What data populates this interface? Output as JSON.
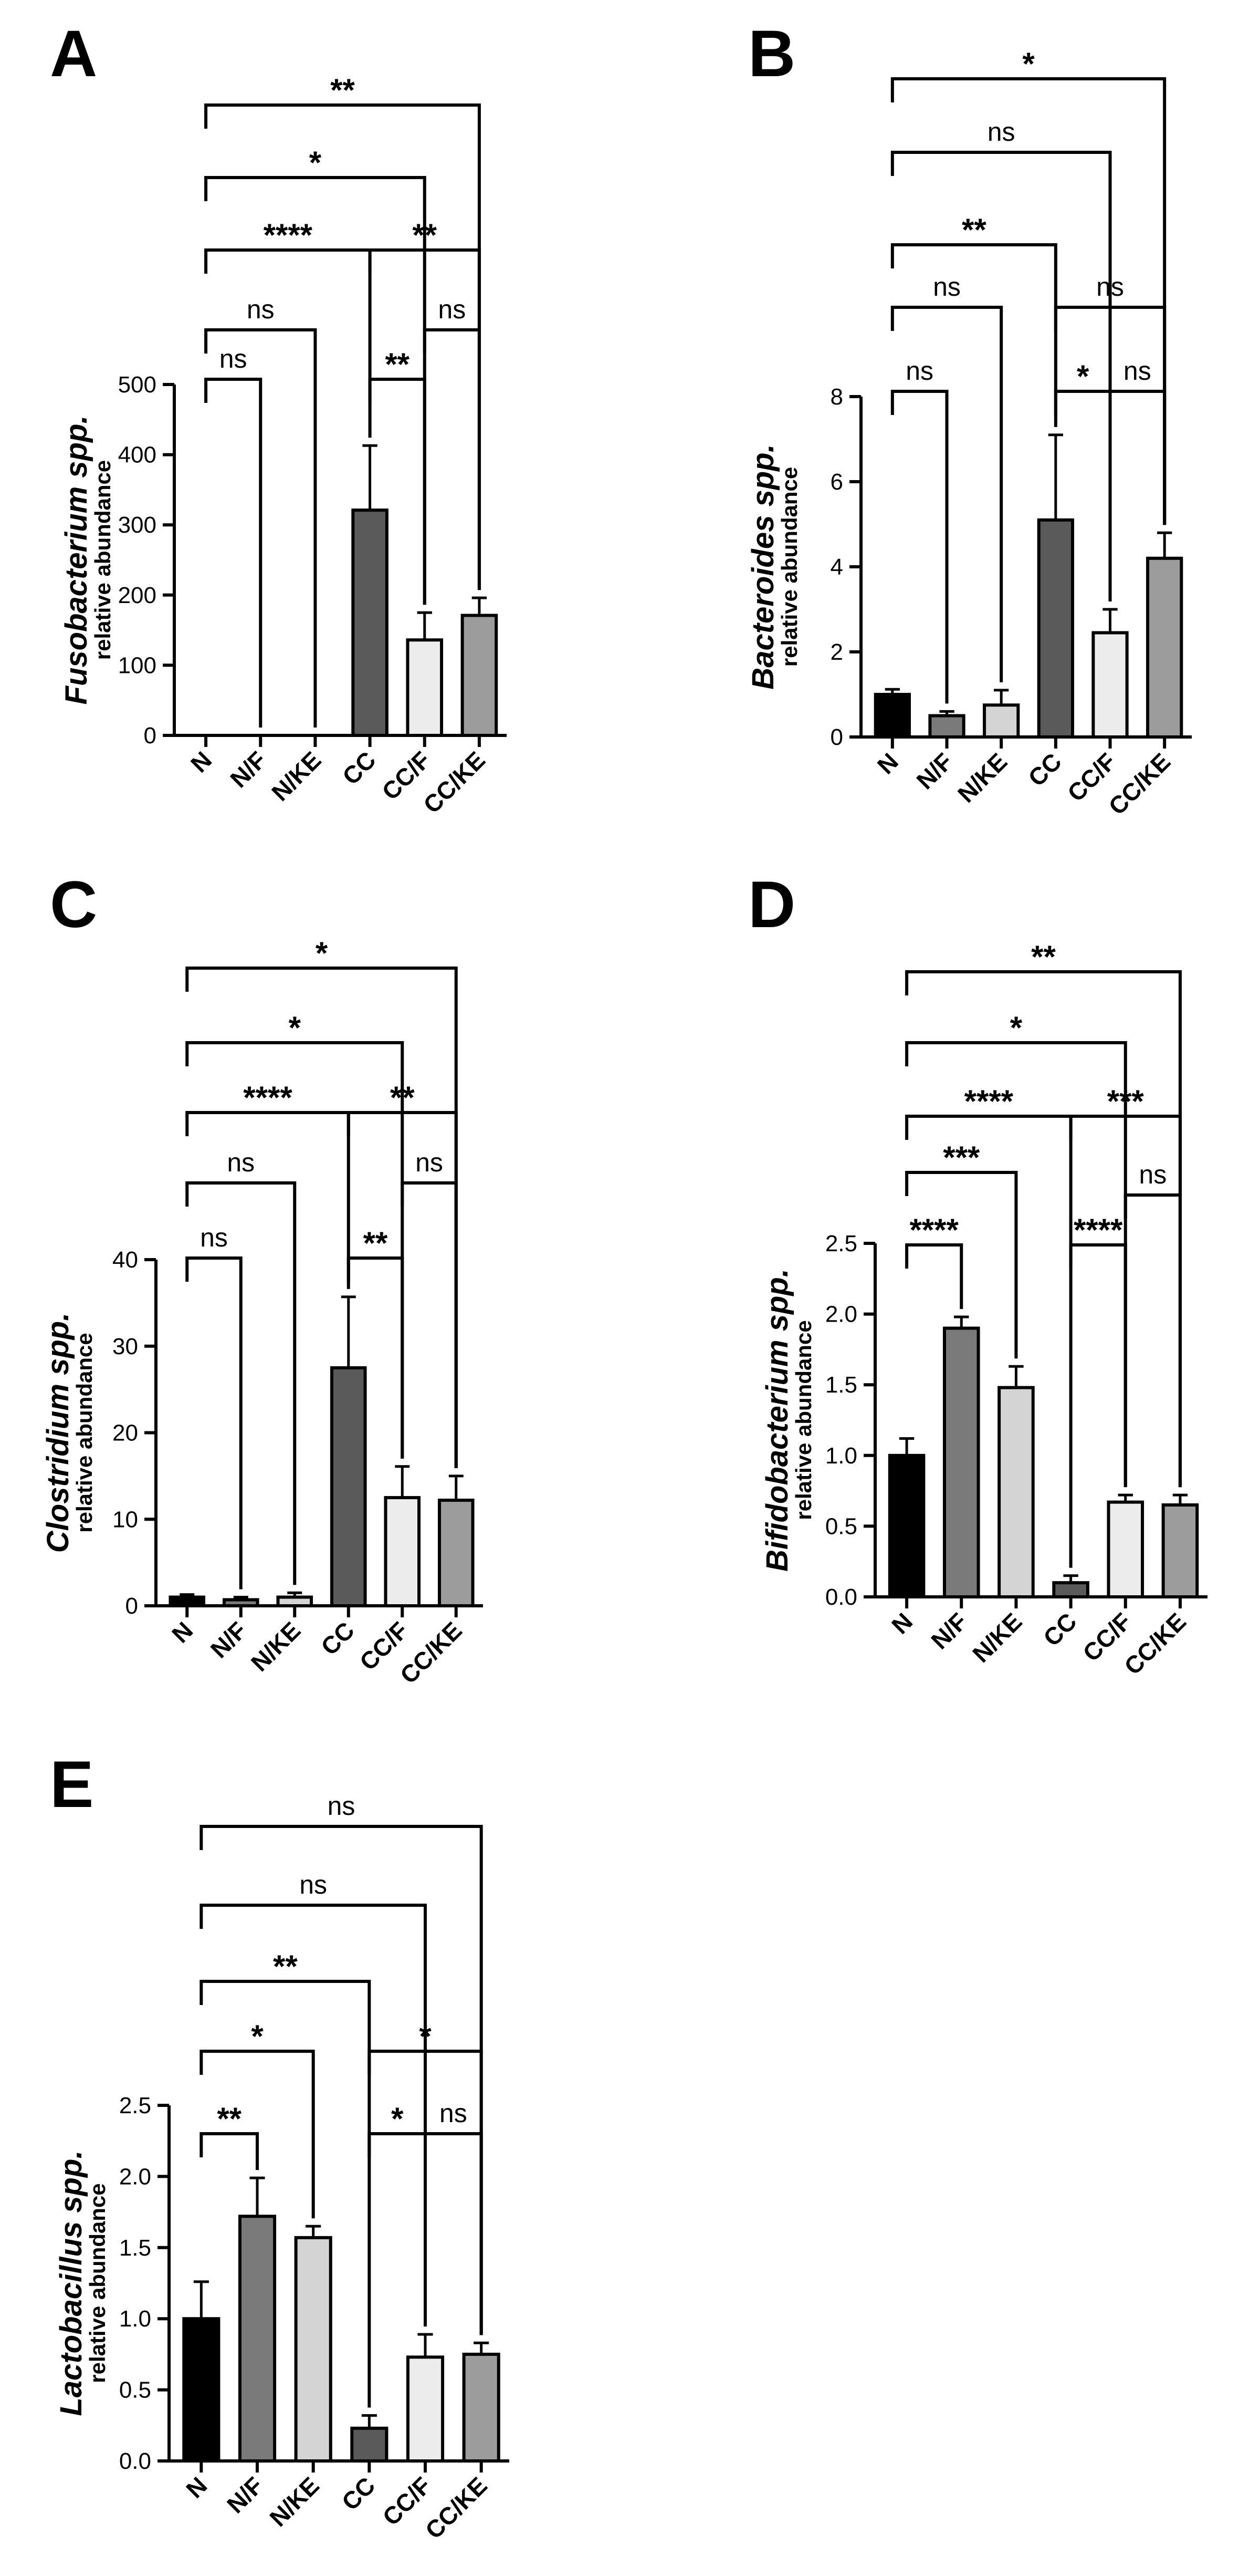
{
  "chart_data": [
    {
      "panel": "A",
      "type": "bar",
      "categories": [
        "N",
        "N/F",
        "N/KE",
        "CC",
        "CC/F",
        "CC/KE"
      ],
      "values": [
        0,
        0,
        0,
        321,
        136,
        171
      ],
      "errors": [
        0,
        0,
        0,
        92,
        39,
        25
      ],
      "bar_colors": [
        "#000000",
        "#7a7a7a",
        "#d4d4d4",
        "#5a5a5a",
        "#ececec",
        "#9c9c9c"
      ],
      "ylabel": "Fusobacterium spp.",
      "ysublabel": "relative abundance",
      "ylim": [
        0,
        500
      ],
      "yticks": [
        0,
        100,
        200,
        300,
        400,
        500
      ],
      "comparisons": [
        {
          "from": 0,
          "to": 1,
          "label": "ns"
        },
        {
          "from": 0,
          "to": 2,
          "label": "ns"
        },
        {
          "from": 0,
          "to": 3,
          "label": "****"
        },
        {
          "from": 0,
          "to": 4,
          "label": "*"
        },
        {
          "from": 0,
          "to": 5,
          "label": "**"
        },
        {
          "from": 3,
          "to": 4,
          "label": "**"
        },
        {
          "from": 3,
          "to": 5,
          "label": "**"
        },
        {
          "from": 4,
          "to": 5,
          "label": "ns"
        }
      ]
    },
    {
      "panel": "B",
      "type": "bar",
      "categories": [
        "N",
        "N/F",
        "N/KE",
        "CC",
        "CC/F",
        "CC/KE"
      ],
      "values": [
        1.0,
        0.5,
        0.75,
        5.1,
        2.45,
        4.2
      ],
      "errors": [
        0.12,
        0.1,
        0.35,
        2.0,
        0.55,
        0.6
      ],
      "bar_colors": [
        "#000000",
        "#7a7a7a",
        "#d4d4d4",
        "#5a5a5a",
        "#ececec",
        "#9c9c9c"
      ],
      "ylabel": "Bacteroides spp.",
      "ysublabel": "relative abundance",
      "ylim": [
        0,
        8
      ],
      "yticks": [
        0,
        2,
        4,
        6,
        8
      ],
      "comparisons": [
        {
          "from": 0,
          "to": 1,
          "label": "ns"
        },
        {
          "from": 0,
          "to": 2,
          "label": "ns"
        },
        {
          "from": 0,
          "to": 3,
          "label": "**"
        },
        {
          "from": 0,
          "to": 4,
          "label": "ns"
        },
        {
          "from": 0,
          "to": 5,
          "label": "*"
        },
        {
          "from": 3,
          "to": 4,
          "label": "*"
        },
        {
          "from": 3,
          "to": 5,
          "label": "ns"
        },
        {
          "from": 4,
          "to": 5,
          "label": "ns"
        }
      ]
    },
    {
      "panel": "C",
      "type": "bar",
      "categories": [
        "N",
        "N/F",
        "N/KE",
        "CC",
        "CC/F",
        "CC/KE"
      ],
      "values": [
        1.0,
        0.7,
        1.0,
        27.5,
        12.5,
        12.2
      ],
      "errors": [
        0.3,
        0.3,
        0.5,
        8.2,
        3.6,
        2.8
      ],
      "bar_colors": [
        "#000000",
        "#7a7a7a",
        "#d4d4d4",
        "#5a5a5a",
        "#ececec",
        "#9c9c9c"
      ],
      "ylabel": "Clostridium spp.",
      "ysublabel": "relative abundance",
      "ylim": [
        0,
        40
      ],
      "yticks": [
        0,
        10,
        20,
        30,
        40
      ],
      "comparisons": [
        {
          "from": 0,
          "to": 1,
          "label": "ns"
        },
        {
          "from": 0,
          "to": 2,
          "label": "ns"
        },
        {
          "from": 0,
          "to": 3,
          "label": "****"
        },
        {
          "from": 0,
          "to": 4,
          "label": "*"
        },
        {
          "from": 0,
          "to": 5,
          "label": "*"
        },
        {
          "from": 3,
          "to": 4,
          "label": "**"
        },
        {
          "from": 3,
          "to": 5,
          "label": "**"
        },
        {
          "from": 4,
          "to": 5,
          "label": "ns"
        }
      ]
    },
    {
      "panel": "D",
      "type": "bar",
      "categories": [
        "N",
        "N/F",
        "N/KE",
        "CC",
        "CC/F",
        "CC/KE"
      ],
      "values": [
        1.0,
        1.9,
        1.48,
        0.1,
        0.67,
        0.65
      ],
      "errors": [
        0.12,
        0.08,
        0.15,
        0.05,
        0.05,
        0.07
      ],
      "bar_colors": [
        "#000000",
        "#7a7a7a",
        "#d4d4d4",
        "#5a5a5a",
        "#ececec",
        "#9c9c9c"
      ],
      "ylabel": "Bifidobacterium spp.",
      "ysublabel": "relative abundance",
      "ylim": [
        0,
        2.5
      ],
      "yticks": [
        0.0,
        0.5,
        1.0,
        1.5,
        2.0,
        2.5
      ],
      "comparisons": [
        {
          "from": 0,
          "to": 1,
          "label": "****"
        },
        {
          "from": 0,
          "to": 2,
          "label": "***"
        },
        {
          "from": 0,
          "to": 3,
          "label": "****"
        },
        {
          "from": 0,
          "to": 4,
          "label": "*"
        },
        {
          "from": 0,
          "to": 5,
          "label": "**"
        },
        {
          "from": 3,
          "to": 4,
          "label": "****"
        },
        {
          "from": 3,
          "to": 5,
          "label": "***"
        },
        {
          "from": 4,
          "to": 5,
          "label": "ns"
        }
      ]
    },
    {
      "panel": "E",
      "type": "bar",
      "categories": [
        "N",
        "N/F",
        "N/KE",
        "CC",
        "CC/F",
        "CC/KE"
      ],
      "values": [
        1.0,
        1.72,
        1.57,
        0.23,
        0.73,
        0.75
      ],
      "errors": [
        0.26,
        0.27,
        0.08,
        0.09,
        0.16,
        0.08
      ],
      "bar_colors": [
        "#000000",
        "#7a7a7a",
        "#d4d4d4",
        "#5a5a5a",
        "#ececec",
        "#9c9c9c"
      ],
      "ylabel": "Lactobacillus spp.",
      "ysublabel": "relative abundance",
      "ylim": [
        0,
        2.5
      ],
      "yticks": [
        0.0,
        0.5,
        1.0,
        1.5,
        2.0,
        2.5
      ],
      "comparisons": [
        {
          "from": 0,
          "to": 1,
          "label": "**"
        },
        {
          "from": 0,
          "to": 2,
          "label": "*"
        },
        {
          "from": 0,
          "to": 3,
          "label": "**"
        },
        {
          "from": 0,
          "to": 4,
          "label": "ns"
        },
        {
          "from": 0,
          "to": 5,
          "label": "ns"
        },
        {
          "from": 3,
          "to": 4,
          "label": "*"
        },
        {
          "from": 3,
          "to": 5,
          "label": "*"
        },
        {
          "from": 4,
          "to": 5,
          "label": "ns"
        }
      ]
    }
  ]
}
